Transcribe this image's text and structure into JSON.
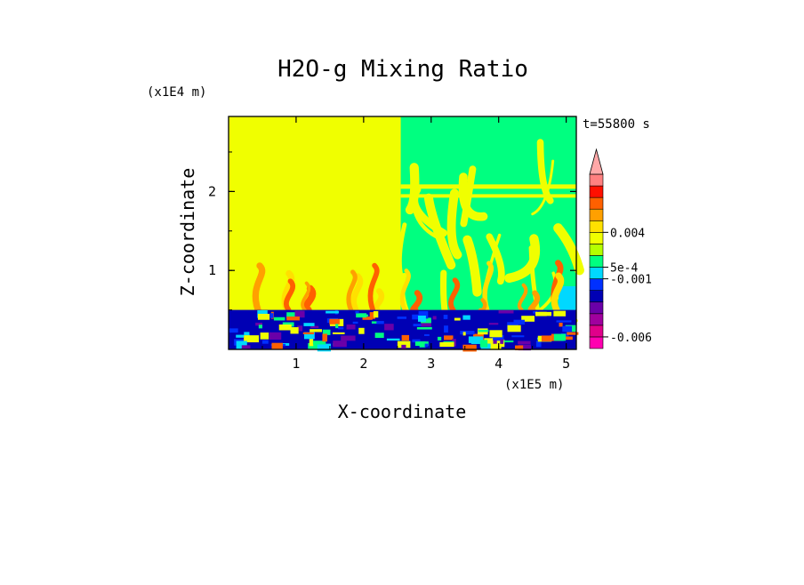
{
  "chart_data": {
    "type": "heatmap",
    "title": "H2O-g Mixing Ratio",
    "xlabel": "X-coordinate",
    "ylabel": "Z-coordinate",
    "x_scale_label": "(x1E5 m)",
    "y_scale_label": "(x1E4 m)",
    "time_label": "t=55800 s",
    "xlim": [
      0,
      5.15
    ],
    "ylim": [
      0,
      2.95
    ],
    "x_ticks": [
      {
        "value": 1,
        "label": "1"
      },
      {
        "value": 2,
        "label": "2"
      },
      {
        "value": 3,
        "label": "3"
      },
      {
        "value": 4,
        "label": "4"
      },
      {
        "value": 5,
        "label": "5"
      }
    ],
    "y_ticks": [
      {
        "value": 1,
        "label": "1"
      },
      {
        "value": 2,
        "label": "2"
      }
    ],
    "colorbar": {
      "bins": [
        "#ff00b0",
        "#e0008a",
        "#a0009e",
        "#6a00a8",
        "#0000b4",
        "#0030ff",
        "#00d8ff",
        "#00ff80",
        "#b4ff00",
        "#f0ff00",
        "#ffe000",
        "#ffa000",
        "#ff6000",
        "#ff1000",
        "#ff8080"
      ],
      "extend_top_color": "#ffa8a8",
      "labels": [
        {
          "bin_index": 1,
          "text": "-0.006"
        },
        {
          "bin_index": 6,
          "text": "-0.001"
        },
        {
          "bin_index": 7,
          "text": "5e-4"
        },
        {
          "bin_index": 10,
          "text": "0.004"
        }
      ]
    },
    "field_description": {
      "moist_background_color": "#f0ff00",
      "turbulent_layer_top_z": 0.5,
      "dry_region_start_x": 2.55
    }
  }
}
